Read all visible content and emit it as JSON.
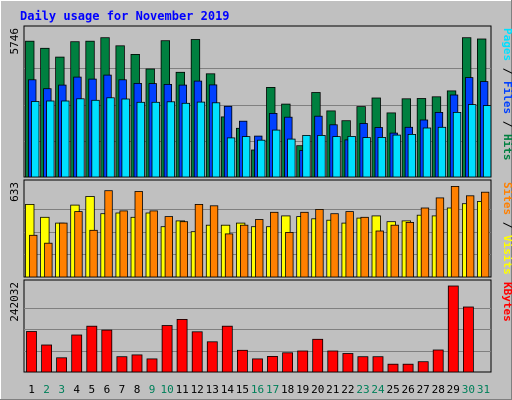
{
  "chart_data": {
    "type": "bar",
    "title": "Daily usage for November 2019",
    "categories": [
      "1",
      "2",
      "3",
      "4",
      "5",
      "6",
      "7",
      "8",
      "9",
      "10",
      "11",
      "12",
      "13",
      "14",
      "15",
      "16",
      "17",
      "18",
      "19",
      "20",
      "21",
      "22",
      "23",
      "24",
      "25",
      "26",
      "27",
      "28",
      "29",
      "30",
      "31"
    ],
    "weekend_days": [
      "2",
      "3",
      "9",
      "10",
      "16",
      "17",
      "23",
      "24",
      "30",
      "31"
    ],
    "panels": [
      {
        "name": "hits-files-pages",
        "max_label": "5746",
        "ymax": 5746,
        "series": [
          {
            "name": "Hits",
            "color": "#008040",
            "values": [
              5380,
              5100,
              4750,
              5360,
              5380,
              5520,
              5200,
              4860,
              4280,
              5400,
              4150,
              5450,
              4090,
              2380,
              1930,
              1070,
              3550,
              2890,
              1240,
              3350,
              2620,
              2230,
              2790,
              3130,
              2540,
              3100,
              3110,
              3180,
              3410,
              5520,
              5470
            ]
          },
          {
            "name": "Files",
            "color": "#0040ff",
            "values": [
              3850,
              3500,
              3640,
              3960,
              3880,
              4040,
              3850,
              3710,
              3700,
              3670,
              3640,
              3800,
              3650,
              2800,
              2210,
              1620,
              2520,
              2370,
              1050,
              2410,
              2070,
              1470,
              2120,
              1960,
              1740,
              1970,
              2260,
              2560,
              3250,
              3940,
              3780
            ]
          },
          {
            "name": "Pages",
            "color": "#00e0ff",
            "values": [
              2990,
              3010,
              3010,
              3100,
              3040,
              3140,
              3090,
              2960,
              2960,
              2980,
              2920,
              2970,
              2940,
              1550,
              1600,
              1460,
              1860,
              1500,
              1650,
              1650,
              1600,
              1610,
              1560,
              1570,
              1660,
              1690,
              1940,
              1970,
              2560,
              2870,
              2830
            ]
          }
        ]
      },
      {
        "name": "visits-sites",
        "max_label": "633",
        "ymax": 633,
        "series": [
          {
            "name": "Visits",
            "color": "#ffff00",
            "values": [
              505,
              415,
              375,
              500,
              560,
              440,
              445,
              415,
              445,
              350,
              390,
              315,
              360,
              360,
              375,
              350,
              350,
              425,
              420,
              405,
              395,
              375,
              410,
              425,
              385,
              390,
              430,
              425,
              480,
              510,
              525
            ]
          },
          {
            "name": "Sites",
            "color": "#ff8000",
            "values": [
              290,
              235,
              375,
              455,
              325,
              600,
              460,
              595,
              460,
              420,
              385,
              505,
              495,
              300,
              360,
              400,
              450,
              310,
              450,
              470,
              440,
              455,
              415,
              320,
              360,
              380,
              480,
              550,
              630,
              565,
              590
            ]
          }
        ]
      },
      {
        "name": "kbytes",
        "max_label": "242032",
        "ymax": 242032,
        "series": [
          {
            "name": "KBytes",
            "color": "#ff0000",
            "values": [
              114000,
              76000,
              40000,
              104000,
              129000,
              118000,
              43000,
              48000,
              37000,
              131000,
              148000,
              113000,
              85000,
              129000,
              61000,
              37000,
              44000,
              54000,
              59000,
              92000,
              59000,
              52000,
              43000,
              43000,
              22000,
              22000,
              29000,
              62000,
              242032,
              183000,
              0
            ]
          }
        ]
      }
    ]
  }
}
